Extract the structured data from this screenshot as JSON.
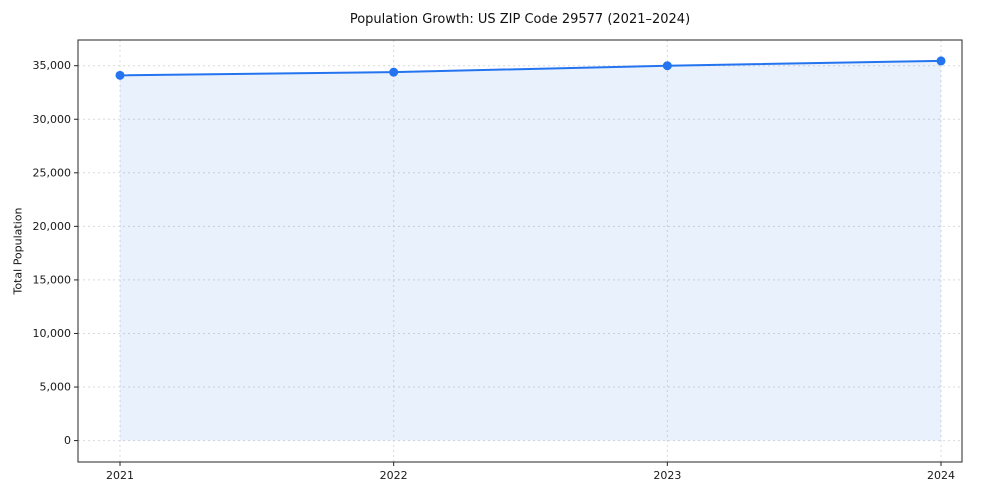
{
  "chart_data": {
    "type": "line",
    "title": "Population Growth: US ZIP Code 29577 (2021–2024)",
    "xlabel": "",
    "ylabel": "Total Population",
    "x": [
      "2021",
      "2022",
      "2023",
      "2024"
    ],
    "series": [
      {
        "name": "Total Population",
        "values": [
          34100,
          34400,
          35000,
          35450
        ]
      }
    ],
    "yticks": [
      0,
      5000,
      10000,
      15000,
      20000,
      25000,
      30000,
      35000
    ],
    "ylim": [
      -2000,
      37400
    ],
    "grid": true,
    "grid_style": "dashed",
    "legend": "none",
    "line_color": "#2474f0",
    "marker": "circle",
    "marker_color": "#2474f0",
    "fill": true,
    "fill_color": "#2474f0",
    "fill_opacity": 0.1,
    "fill_baseline": 0,
    "axis_color": "#262626",
    "grid_color": "#d9d9d9"
  }
}
